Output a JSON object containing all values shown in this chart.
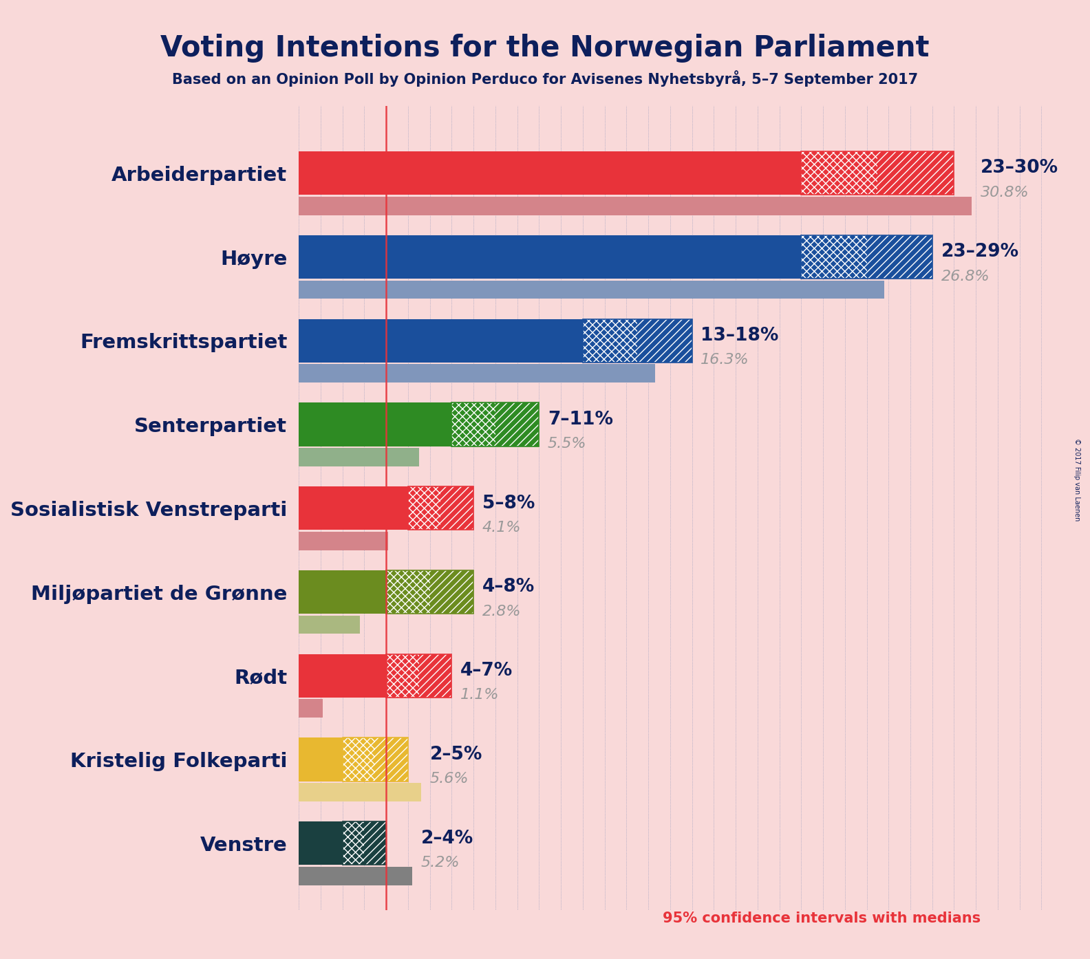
{
  "title": "Voting Intentions for the Norwegian Parliament",
  "subtitle": "Based on an Opinion Poll by Opinion Perduco for Avisenes Nyhetsbyrå, 5–7 September 2017",
  "copyright": "© 2017 Filip van Laenen",
  "background_color": "#f9d9d9",
  "title_color": "#0d1f5c",
  "footer_text": "95% confidence intervals with medians",
  "footer_color": "#e8333a",
  "parties": [
    {
      "name": "Arbeiderpartiet",
      "color": "#e8333a",
      "median_color": "#d4848a",
      "ci_low": 23,
      "ci_high": 30,
      "median": 30.8,
      "label": "23–30%",
      "median_label": "30.8%"
    },
    {
      "name": "Høyre",
      "color": "#1a4f9c",
      "median_color": "#8096bb",
      "ci_low": 23,
      "ci_high": 29,
      "median": 26.8,
      "label": "23–29%",
      "median_label": "26.8%"
    },
    {
      "name": "Fremskrittspartiet",
      "color": "#1a4f9c",
      "median_color": "#8096bb",
      "ci_low": 13,
      "ci_high": 18,
      "median": 16.3,
      "label": "13–18%",
      "median_label": "16.3%"
    },
    {
      "name": "Senterpartiet",
      "color": "#2e8b23",
      "median_color": "#90b08a",
      "ci_low": 7,
      "ci_high": 11,
      "median": 5.5,
      "label": "7–11%",
      "median_label": "5.5%"
    },
    {
      "name": "Sosialistisk Venstreparti",
      "color": "#e8333a",
      "median_color": "#d4848a",
      "ci_low": 5,
      "ci_high": 8,
      "median": 4.1,
      "label": "5–8%",
      "median_label": "4.1%"
    },
    {
      "name": "Miljøpartiet de Grønne",
      "color": "#6b8c1f",
      "median_color": "#aab880",
      "ci_low": 4,
      "ci_high": 8,
      "median": 2.8,
      "label": "4–8%",
      "median_label": "2.8%"
    },
    {
      "name": "Rødt",
      "color": "#e8333a",
      "median_color": "#d4848a",
      "ci_low": 4,
      "ci_high": 7,
      "median": 1.1,
      "label": "4–7%",
      "median_label": "1.1%"
    },
    {
      "name": "Kristelig Folkeparti",
      "color": "#e8b830",
      "median_color": "#e8d08a",
      "ci_low": 2,
      "ci_high": 5,
      "median": 5.6,
      "label": "2–5%",
      "median_label": "5.6%"
    },
    {
      "name": "Venstre",
      "color": "#1a4040",
      "median_color": "#808080",
      "ci_low": 2,
      "ci_high": 4,
      "median": 5.2,
      "label": "2–4%",
      "median_label": "5.2%"
    }
  ],
  "xlim_max": 35,
  "red_line_x": 4.0,
  "bar_height": 0.52,
  "median_bar_height": 0.22,
  "label_fontsize": 19,
  "range_label_fontsize": 19,
  "median_label_fontsize": 16,
  "title_fontsize": 30,
  "subtitle_fontsize": 15,
  "party_label_fontsize": 21
}
